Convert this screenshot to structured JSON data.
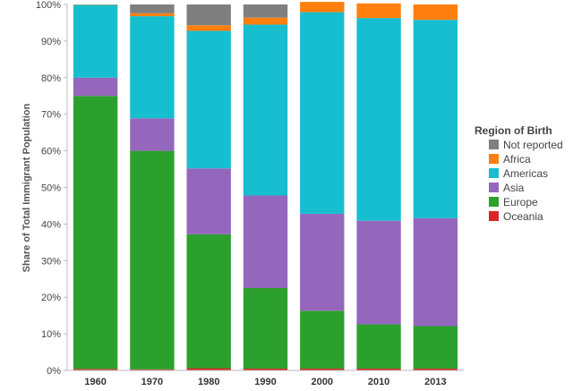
{
  "chart_data": {
    "type": "bar",
    "stacked": true,
    "categories": [
      "1960",
      "1970",
      "1980",
      "1990",
      "2000",
      "2010",
      "2013"
    ],
    "ylabel": "Share of Total Immigrant Population",
    "xlabel": "",
    "ylim": [
      0,
      100
    ],
    "yticks": [
      "0%",
      "10%",
      "20%",
      "30%",
      "40%",
      "50%",
      "60%",
      "70%",
      "80%",
      "90%",
      "100%"
    ],
    "grid": false,
    "legend_position": "right",
    "legend_title": "Region of Birth",
    "legend_order": [
      "Not reported",
      "Africa",
      "Americas",
      "Asia",
      "Europe",
      "Oceania"
    ],
    "series": [
      {
        "name": "Oceania",
        "color": "#d62728",
        "values": [
          0.4,
          0.3,
          0.6,
          0.5,
          0.5,
          0.5,
          0.5
        ]
      },
      {
        "name": "Europe",
        "color": "#2ca02c",
        "values": [
          74.6,
          59.7,
          36.6,
          22.0,
          15.8,
          12.1,
          11.6
        ]
      },
      {
        "name": "Asia",
        "color": "#9467bd",
        "values": [
          5.0,
          8.9,
          18.0,
          25.3,
          26.5,
          28.3,
          29.5
        ]
      },
      {
        "name": "Americas",
        "color": "#17becf",
        "values": [
          19.9,
          27.9,
          37.6,
          46.7,
          55.1,
          55.4,
          54.2
        ]
      },
      {
        "name": "Africa",
        "color": "#ff7f0e",
        "values": [
          0.1,
          0.8,
          1.5,
          1.9,
          2.8,
          4.0,
          4.2
        ]
      },
      {
        "name": "Not reported",
        "color": "#7f7f7f",
        "values": [
          0.0,
          2.4,
          5.7,
          3.6,
          0.0,
          0.0,
          0.0
        ]
      }
    ]
  }
}
